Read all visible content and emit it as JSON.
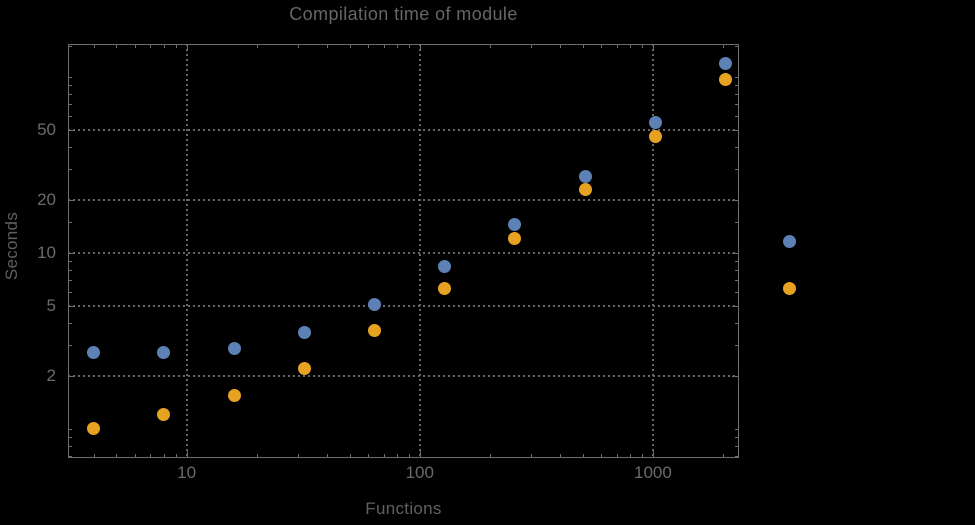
{
  "title": "Compilation time of module",
  "chart_data": {
    "type": "scatter",
    "title": "Compilation time of module",
    "xlabel": "Functions",
    "ylabel": "Seconds",
    "x_scale": "log",
    "y_scale": "log",
    "xlim": [
      3.1,
      2340
    ],
    "ylim": [
      0.68,
      154
    ],
    "grid": "dotted",
    "x": [
      4,
      8,
      16,
      32,
      64,
      128,
      256,
      512,
      1024,
      2048
    ],
    "series": [
      {
        "name": "series-1-blue",
        "color": "#5E81B5",
        "values": [
          2.7,
          2.7,
          2.85,
          3.5,
          5.1,
          8.4,
          14.5,
          27,
          55,
          119
        ]
      },
      {
        "name": "series-2-orange",
        "color": "#E7A221",
        "values": [
          1.0,
          1.2,
          1.55,
          2.2,
          3.6,
          6.3,
          12,
          23,
          46,
          97
        ]
      }
    ],
    "x_ticks": {
      "labeled": [
        10,
        100,
        1000
      ],
      "minor": [
        4,
        5,
        6,
        7,
        8,
        9,
        20,
        30,
        40,
        50,
        60,
        70,
        80,
        90,
        200,
        300,
        400,
        500,
        600,
        700,
        800,
        900,
        2000
      ]
    },
    "y_ticks": {
      "labeled": [
        50,
        20,
        10,
        5,
        2
      ],
      "minor": [
        0.7,
        0.8,
        0.9,
        1,
        3,
        4,
        6,
        7,
        8,
        9,
        15,
        30,
        40,
        60,
        70,
        80,
        90,
        100,
        150
      ]
    },
    "legend": {
      "position": "outside-right",
      "marker_colors": [
        "#5E81B5",
        "#E7A221"
      ],
      "labels_visible": false
    }
  },
  "colors": {
    "background": "#000000",
    "frame": "#6E6E6E",
    "gridline": "#676767",
    "text": "#6A6A6A"
  }
}
